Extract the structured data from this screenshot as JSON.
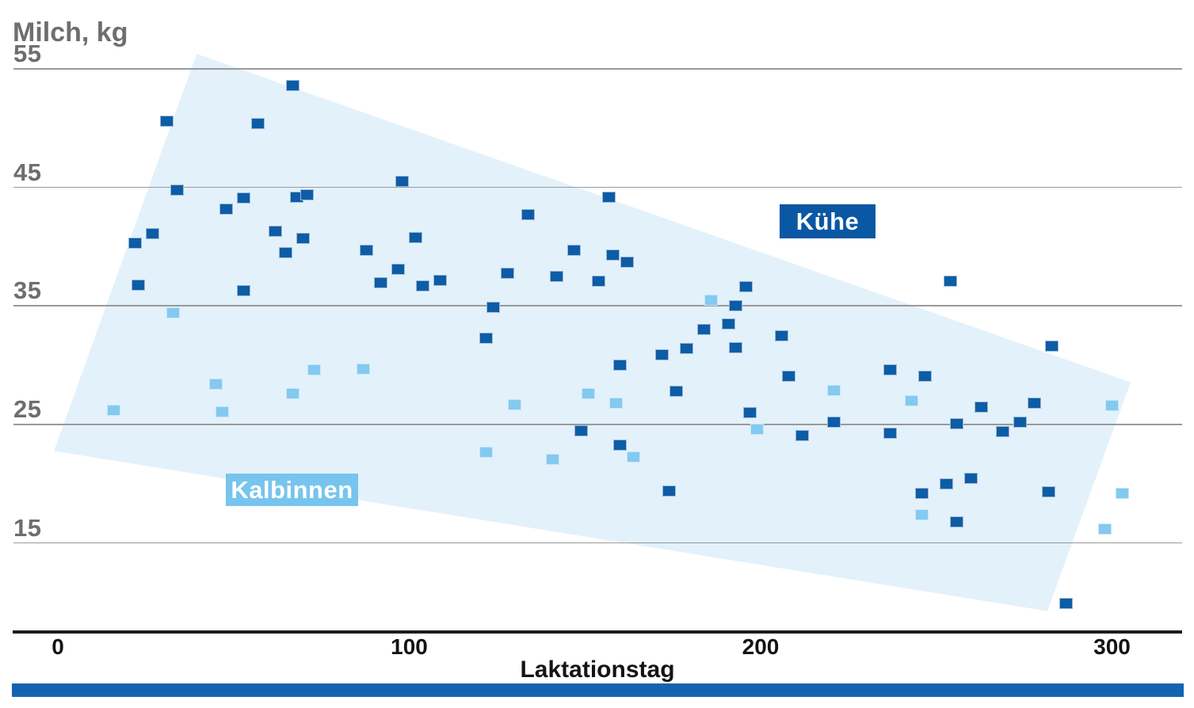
{
  "labels": {
    "y_axis_title": "Milch, kg",
    "x_axis_title": "Laktationstag"
  },
  "legend": {
    "kuehe_label": "Kühe",
    "kalbinnen_label": "Kalbinnen"
  },
  "colors": {
    "kuehe_point": "#0d5ca7",
    "kalbinnen_point": "#84c9ef",
    "kuehe_legend_bg": "#0a57a4",
    "kalbinnen_legend_bg": "#77c4ee",
    "band_fill": "#e3f1fb",
    "gridline": "#9a9a9a",
    "axis_line": "#1c1c1c",
    "bottom_bar": "#1264b2",
    "tick_text_gray": "#6e6e6e"
  },
  "chart_data": {
    "type": "scatter",
    "title": "",
    "ylabel": "Milch, kg",
    "xlabel": "Laktationstag",
    "xlim": [
      -13,
      320
    ],
    "ylim": [
      7.5,
      56.5
    ],
    "x_ticks": [
      0,
      100,
      200,
      300
    ],
    "y_ticks": [
      55,
      45,
      35,
      25,
      15
    ],
    "grid": "horizontal-only",
    "legend_position": "inline-floating-boxes",
    "series": [
      {
        "name": "Kühe",
        "color": "#0d5ca7",
        "points": [
          [
            67,
            53.5
          ],
          [
            31,
            50.5
          ],
          [
            57,
            50.3
          ],
          [
            34,
            44.7
          ],
          [
            53,
            44.0
          ],
          [
            48,
            43.1
          ],
          [
            68,
            44.1
          ],
          [
            71,
            44.3
          ],
          [
            62,
            41.2
          ],
          [
            70,
            40.6
          ],
          [
            65,
            39.4
          ],
          [
            88,
            39.6
          ],
          [
            27,
            41.0
          ],
          [
            22,
            40.2
          ],
          [
            23,
            36.7
          ],
          [
            53,
            36.2
          ],
          [
            92,
            36.9
          ],
          [
            98,
            45.4
          ],
          [
            97,
            38.0
          ],
          [
            102,
            40.7
          ],
          [
            104,
            36.6
          ],
          [
            109,
            37.1
          ],
          [
            128,
            37.7
          ],
          [
            142,
            37.4
          ],
          [
            154,
            37.0
          ],
          [
            157,
            44.1
          ],
          [
            134,
            42.6
          ],
          [
            147,
            39.6
          ],
          [
            158,
            39.2
          ],
          [
            162,
            38.6
          ],
          [
            124,
            34.8
          ],
          [
            122,
            32.2
          ],
          [
            160,
            29.9
          ],
          [
            149,
            24.4
          ],
          [
            160,
            23.2
          ],
          [
            172,
            30.8
          ],
          [
            179,
            31.3
          ],
          [
            184,
            32.9
          ],
          [
            191,
            33.4
          ],
          [
            193,
            31.4
          ],
          [
            193,
            34.9
          ],
          [
            196,
            36.5
          ],
          [
            197,
            25.9
          ],
          [
            174,
            19.3
          ],
          [
            176,
            27.7
          ],
          [
            206,
            32.4
          ],
          [
            208,
            29.0
          ],
          [
            212,
            24.0
          ],
          [
            221,
            25.1
          ],
          [
            237,
            24.2
          ],
          [
            237,
            29.5
          ],
          [
            247,
            29.0
          ],
          [
            254,
            37.0
          ],
          [
            256,
            25.0
          ],
          [
            263,
            26.4
          ],
          [
            269,
            24.3
          ],
          [
            274,
            25.1
          ],
          [
            278,
            26.7
          ],
          [
            283,
            31.5
          ],
          [
            287,
            9.8
          ],
          [
            246,
            19.1
          ],
          [
            253,
            19.9
          ],
          [
            260,
            20.4
          ],
          [
            256,
            16.7
          ],
          [
            282,
            19.2
          ]
        ]
      },
      {
        "name": "Kalbinnen",
        "color": "#84c9ef",
        "points": [
          [
            16,
            26.1
          ],
          [
            33,
            34.3
          ],
          [
            45,
            28.3
          ],
          [
            47,
            26.0
          ],
          [
            73,
            29.5
          ],
          [
            67,
            27.5
          ],
          [
            87,
            29.6
          ],
          [
            122,
            22.6
          ],
          [
            130,
            26.6
          ],
          [
            141,
            22.0
          ],
          [
            151,
            27.5
          ],
          [
            159,
            26.7
          ],
          [
            164,
            22.2
          ],
          [
            186,
            35.4
          ],
          [
            199,
            24.5
          ],
          [
            221,
            27.8
          ],
          [
            243,
            26.9
          ],
          [
            246,
            17.3
          ],
          [
            298,
            16.1
          ],
          [
            300,
            26.5
          ],
          [
            303,
            19.1
          ]
        ]
      }
    ],
    "band": {
      "description": "light blue quadrilateral envelope behind points",
      "color": "#e3f1fb",
      "vertices_day_kg": [
        [
          39.5,
          56.2
        ],
        [
          305.3,
          28.5
        ],
        [
          281.6,
          9.2
        ],
        [
          -1.1,
          22.7
        ]
      ]
    }
  }
}
